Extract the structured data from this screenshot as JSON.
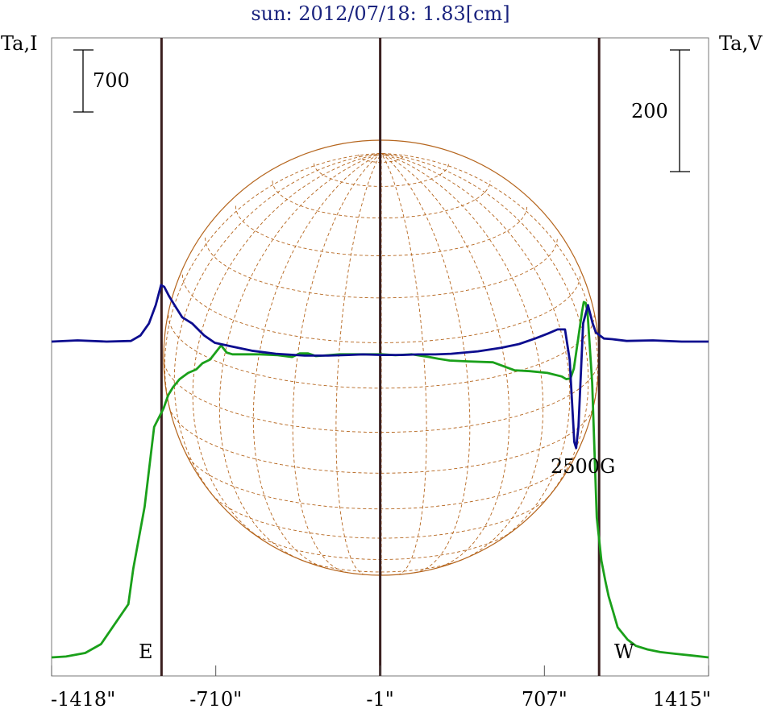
{
  "chart_data": {
    "type": "line",
    "title": "sun: 2012/07/18: 1.83[cm]",
    "left_axis_label": "Ta,I",
    "right_axis_label": "Ta,V",
    "scale_bar_left": "700",
    "scale_bar_right": "200",
    "x_ticks": [
      "-1418\"",
      "-710\"",
      "-1\"",
      "707\"",
      "1415\""
    ],
    "x_tick_values": [
      -1418,
      -710,
      -1,
      707,
      1415
    ],
    "xlim": [
      -1418,
      1415
    ],
    "limb_markers": [
      {
        "label": "E",
        "x": -944
      },
      {
        "label": "W",
        "x": 943
      }
    ],
    "center_marker_x": -1,
    "annotation": "2500G",
    "colors": {
      "intensity": "#1aa01a",
      "polarization": "#0d0d8f",
      "markers": "#3a1f1f",
      "grid": "#b5651d",
      "title": "#1a237e"
    },
    "series": [
      {
        "key": "intensity",
        "x": [
          -1418,
          -1356,
          -1273,
          -1205,
          -1087,
          -1066,
          -1017,
          -976,
          -935,
          -915,
          -894,
          -866,
          -829,
          -794,
          -767,
          -735,
          -687,
          -663,
          -638,
          -616,
          -521,
          -443,
          -381,
          -348,
          -312,
          -278,
          -225,
          -176,
          -58,
          7,
          65,
          134,
          209,
          249,
          298,
          380,
          485,
          578,
          644,
          720,
          782,
          801,
          820,
          834,
          870,
          877,
          885,
          893,
          913,
          933,
          953,
          970,
          984,
          1004,
          1023,
          1066,
          1102,
          1152,
          1207,
          1276,
          1348,
          1415
        ],
        "y": [
          0,
          10,
          50,
          150,
          600,
          1000,
          1700,
          2600,
          2810,
          2960,
          3050,
          3140,
          3210,
          3250,
          3320,
          3360,
          3520,
          3440,
          3420,
          3420,
          3420,
          3410,
          3390,
          3430,
          3430,
          3400,
          3410,
          3420,
          3420,
          3420,
          3410,
          3420,
          3390,
          3370,
          3350,
          3340,
          3330,
          3240,
          3230,
          3210,
          3170,
          3140,
          3150,
          3260,
          3910,
          4010,
          4000,
          3900,
          3100,
          1580,
          1090,
          860,
          690,
          510,
          340,
          200,
          130,
          90,
          60,
          40,
          20,
          0
        ]
      },
      {
        "key": "polarization",
        "x": [
          -1418,
          -1306,
          -1181,
          -1076,
          -1035,
          -998,
          -969,
          -946,
          -932,
          -912,
          -888,
          -855,
          -812,
          -760,
          -714,
          -642,
          -555,
          -451,
          -327,
          -226,
          -138,
          -75,
          8,
          87,
          163,
          237,
          305,
          420,
          522,
          598,
          667,
          721,
          764,
          796,
          816,
          836,
          844,
          854,
          874,
          895,
          915,
          929,
          964,
          1000,
          1062,
          1175,
          1299,
          1415
        ],
        "y": [
          0,
          2,
          0,
          1,
          10,
          30,
          60,
          93,
          90,
          75,
          60,
          40,
          30,
          10,
          -2,
          -8,
          -15,
          -20,
          -23,
          -23,
          -22,
          -21,
          -22,
          -22,
          -21,
          -21,
          -20,
          -16,
          -10,
          -4,
          5,
          13,
          20,
          20,
          -30,
          -165,
          -175,
          -140,
          30,
          60,
          30,
          15,
          5,
          4,
          1,
          2,
          0,
          0
        ]
      }
    ]
  }
}
